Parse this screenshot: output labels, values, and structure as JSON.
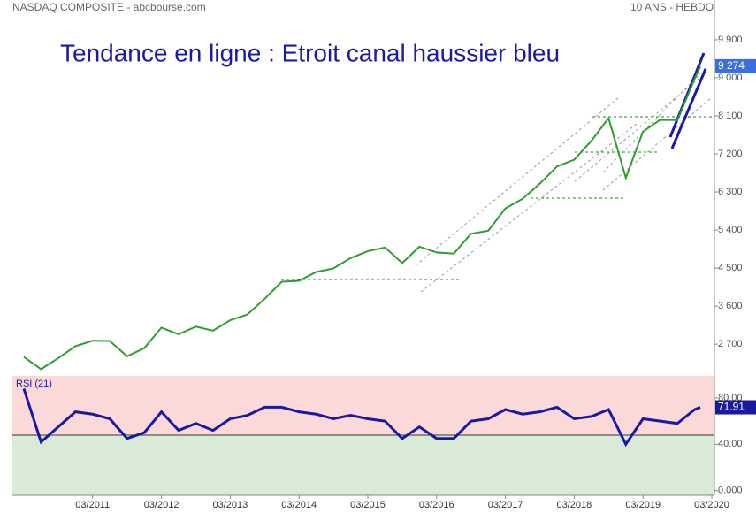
{
  "chart_data": [
    {
      "type": "line",
      "header_left": "NASDAQ COMPOSITE - abcbourse.com",
      "header_right": "10 ANS - HEBDO",
      "title": "Tendance en ligne  : Etroit canal haussier bleu",
      "x": [
        "2010-03",
        "2010-06",
        "2010-09",
        "2010-12",
        "2011-03",
        "2011-06",
        "2011-09",
        "2011-12",
        "2012-03",
        "2012-06",
        "2012-09",
        "2012-12",
        "2013-03",
        "2013-06",
        "2013-09",
        "2013-12",
        "2014-03",
        "2014-06",
        "2014-09",
        "2014-12",
        "2015-03",
        "2015-06",
        "2015-09",
        "2015-12",
        "2016-03",
        "2016-06",
        "2016-09",
        "2016-12",
        "2017-03",
        "2017-06",
        "2017-09",
        "2017-12",
        "2018-03",
        "2018-06",
        "2018-09",
        "2018-12",
        "2019-03",
        "2019-06",
        "2019-09",
        "2019-12",
        "2020-01"
      ],
      "series": [
        {
          "name": "NASDAQ COMPOSITE",
          "color": "#2e9e2e",
          "values": [
            2398,
            2109,
            2369,
            2653,
            2781,
            2774,
            2415,
            2605,
            3092,
            2935,
            3116,
            3020,
            3268,
            3403,
            3771,
            4177,
            4199,
            4408,
            4493,
            4736,
            4901,
            4987,
            4620,
            5007,
            4870,
            4843,
            5312,
            5383,
            5912,
            6140,
            6496,
            6903,
            7063,
            7510,
            8046,
            6635,
            7729,
            8006,
            7999,
            8973,
            9274
          ],
          "value_labels": [
            null,
            null,
            null,
            null,
            null,
            null,
            null,
            null,
            null,
            null,
            null,
            null,
            null,
            null,
            null,
            null,
            null,
            null,
            null,
            null,
            null,
            null,
            null,
            null,
            null,
            null,
            null,
            null,
            null,
            null,
            null,
            null,
            null,
            null,
            null,
            null,
            null,
            null,
            null,
            null,
            "9 274"
          ]
        }
      ],
      "xlim": [
        "2010-01",
        "2020-03"
      ],
      "ylim": [
        1950,
        10840
      ],
      "yticks": [
        {
          "value": 2700,
          "label": "2 700"
        },
        {
          "value": 3600,
          "label": "3 600"
        },
        {
          "value": 4500,
          "label": "4 500"
        },
        {
          "value": 5400,
          "label": "5 400"
        },
        {
          "value": 6300,
          "label": "6 300"
        },
        {
          "value": 7200,
          "label": "7 200"
        },
        {
          "value": 8100,
          "label": "8 100"
        },
        {
          "value": 9000,
          "label": "9 000"
        },
        {
          "value": 9900,
          "label": "9 900"
        }
      ]
    },
    {
      "type": "line",
      "title": "RSI (21)",
      "x": [
        "2010-03",
        "2010-06",
        "2010-09",
        "2010-12",
        "2011-03",
        "2011-06",
        "2011-09",
        "2011-12",
        "2012-03",
        "2012-06",
        "2012-09",
        "2012-12",
        "2013-03",
        "2013-06",
        "2013-09",
        "2013-12",
        "2014-03",
        "2014-06",
        "2014-09",
        "2014-12",
        "2015-03",
        "2015-06",
        "2015-09",
        "2015-12",
        "2016-03",
        "2016-06",
        "2016-09",
        "2016-12",
        "2017-03",
        "2017-06",
        "2017-09",
        "2017-12",
        "2018-03",
        "2018-06",
        "2018-09",
        "2018-12",
        "2019-03",
        "2019-06",
        "2019-09",
        "2019-12",
        "2020-01"
      ],
      "series": [
        {
          "name": "RSI (21)",
          "color": "#1a1aa0",
          "values": [
            88,
            42,
            55,
            68,
            66,
            62,
            45,
            50,
            68,
            52,
            58,
            52,
            62,
            65,
            72,
            72,
            68,
            66,
            62,
            65,
            62,
            60,
            45,
            55,
            45,
            45,
            60,
            62,
            70,
            66,
            68,
            72,
            62,
            64,
            70,
            40,
            62,
            60,
            58,
            70,
            71.91
          ]
        }
      ],
      "xlim": [
        "2010-01",
        "2020-03"
      ],
      "ylim": [
        -4,
        99
      ],
      "yticks": [
        {
          "value": 0,
          "label": "0.000"
        },
        {
          "value": 40,
          "label": "40.00"
        },
        {
          "value": 80,
          "label": "80.00"
        }
      ],
      "xticks": [
        {
          "value": "2011-03",
          "label": "03/2011"
        },
        {
          "value": "2012-03",
          "label": "03/2012"
        },
        {
          "value": "2013-03",
          "label": "03/2013"
        },
        {
          "value": "2014-03",
          "label": "03/2014"
        },
        {
          "value": "2015-03",
          "label": "03/2015"
        },
        {
          "value": "2016-03",
          "label": "03/2016"
        },
        {
          "value": "2017-03",
          "label": "03/2017"
        },
        {
          "value": "2018-03",
          "label": "03/2018"
        },
        {
          "value": "2019-03",
          "label": "03/2019"
        },
        {
          "value": "2020-03",
          "label": "03/2020"
        }
      ]
    }
  ]
}
